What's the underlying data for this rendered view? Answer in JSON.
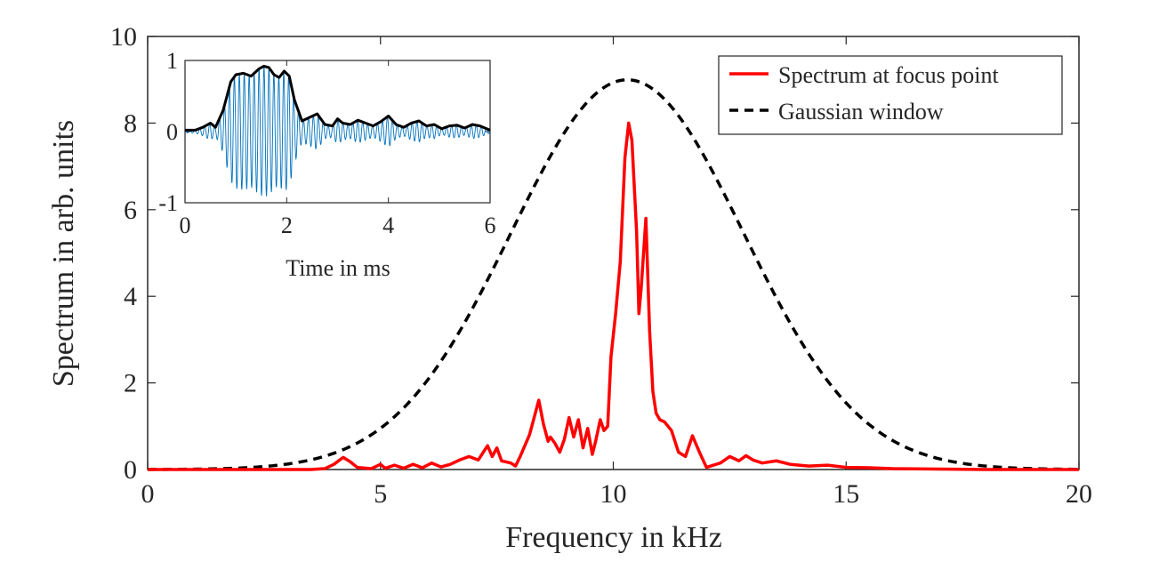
{
  "chart_data": [
    {
      "type": "line",
      "xlabel": "Frequency in kHz",
      "ylabel": "Spectrum in arb. units",
      "xlim": [
        0,
        20
      ],
      "ylim": [
        0,
        10
      ],
      "xticks": [
        "0",
        "5",
        "10",
        "15",
        "20"
      ],
      "yticks": [
        "0",
        "2",
        "4",
        "6",
        "8",
        "10"
      ],
      "legend": {
        "placement": "top-right",
        "entries": [
          "Spectrum at focus point",
          "Gaussian window"
        ]
      },
      "series": [
        {
          "name": "Spectrum at focus point",
          "color": "#ff0000",
          "x": [
            0,
            3.5,
            3.8,
            4.0,
            4.2,
            4.35,
            4.5,
            4.8,
            5.0,
            5.1,
            5.3,
            5.5,
            5.7,
            5.9,
            6.1,
            6.3,
            6.5,
            6.7,
            6.9,
            7.1,
            7.3,
            7.4,
            7.5,
            7.6,
            7.8,
            7.9,
            8.0,
            8.1,
            8.2,
            8.3,
            8.4,
            8.5,
            8.6,
            8.65,
            8.75,
            8.85,
            8.95,
            9.05,
            9.15,
            9.25,
            9.35,
            9.45,
            9.55,
            9.62,
            9.72,
            9.8,
            9.88,
            9.95,
            10.05,
            10.15,
            10.25,
            10.33,
            10.4,
            10.5,
            10.55,
            10.6,
            10.7,
            10.78,
            10.85,
            10.92,
            11.0,
            11.1,
            11.25,
            11.4,
            11.55,
            11.7,
            11.85,
            12.0,
            12.3,
            12.5,
            12.7,
            12.85,
            13.0,
            13.2,
            13.5,
            13.8,
            14.2,
            14.6,
            15.0,
            15.5,
            16.0,
            17.0,
            18.0,
            20.0
          ],
          "values": [
            0,
            0,
            0.02,
            0.12,
            0.28,
            0.18,
            0.05,
            0.02,
            0.12,
            0.03,
            0.1,
            0.03,
            0.12,
            0.04,
            0.15,
            0.06,
            0.12,
            0.22,
            0.3,
            0.22,
            0.55,
            0.3,
            0.5,
            0.2,
            0.15,
            0.08,
            0.3,
            0.55,
            0.8,
            1.2,
            1.6,
            1.05,
            0.65,
            0.75,
            0.6,
            0.4,
            0.7,
            1.2,
            0.75,
            1.15,
            0.5,
            0.95,
            0.35,
            0.65,
            1.15,
            0.9,
            1.0,
            2.6,
            3.6,
            4.8,
            7.2,
            8.0,
            7.6,
            5.5,
            3.6,
            4.2,
            5.8,
            3.2,
            1.8,
            1.3,
            1.15,
            1.1,
            0.9,
            0.4,
            0.3,
            0.78,
            0.4,
            0.05,
            0.15,
            0.3,
            0.2,
            0.32,
            0.22,
            0.15,
            0.2,
            0.12,
            0.08,
            0.1,
            0.05,
            0.04,
            0.02,
            0.01,
            0,
            0
          ]
        },
        {
          "name": "Gaussian window",
          "color": "#000000",
          "dashed": true,
          "function": "gaussian",
          "amplitude": 9.0,
          "center": 10.3,
          "sigma": 2.5
        }
      ]
    },
    {
      "type": "line",
      "role": "inset",
      "xlabel": "Time in ms",
      "ylabel": "",
      "xlim": [
        0,
        6
      ],
      "ylim": [
        -1,
        1
      ],
      "xticks": [
        "0",
        "2",
        "4",
        "6"
      ],
      "yticks": [
        "-1",
        "0",
        "1"
      ],
      "series": [
        {
          "name": "signal",
          "color": "#0072bd",
          "carrier_frequency_khz": 10.3
        },
        {
          "name": "envelope",
          "color": "#000000",
          "x": [
            0,
            0.2,
            0.35,
            0.5,
            0.6,
            0.75,
            0.9,
            1.0,
            1.15,
            1.3,
            1.45,
            1.55,
            1.65,
            1.75,
            1.85,
            1.95,
            2.05,
            2.15,
            2.3,
            2.45,
            2.6,
            2.75,
            2.9,
            3.0,
            3.1,
            3.25,
            3.4,
            3.55,
            3.7,
            3.85,
            4.0,
            4.15,
            4.3,
            4.45,
            4.6,
            4.75,
            4.9,
            5.05,
            5.2,
            5.35,
            5.5,
            5.65,
            5.8,
            6.0
          ],
          "values": [
            0.02,
            0.02,
            0.06,
            0.12,
            0.06,
            0.3,
            0.7,
            0.8,
            0.82,
            0.78,
            0.88,
            0.92,
            0.9,
            0.8,
            0.76,
            0.85,
            0.78,
            0.45,
            0.15,
            0.2,
            0.25,
            0.1,
            0.08,
            0.18,
            0.12,
            0.1,
            0.16,
            0.12,
            0.08,
            0.14,
            0.22,
            0.1,
            0.06,
            0.12,
            0.15,
            0.08,
            0.1,
            0.04,
            0.08,
            0.09,
            0.05,
            0.1,
            0.08,
            0.02
          ]
        }
      ]
    }
  ]
}
